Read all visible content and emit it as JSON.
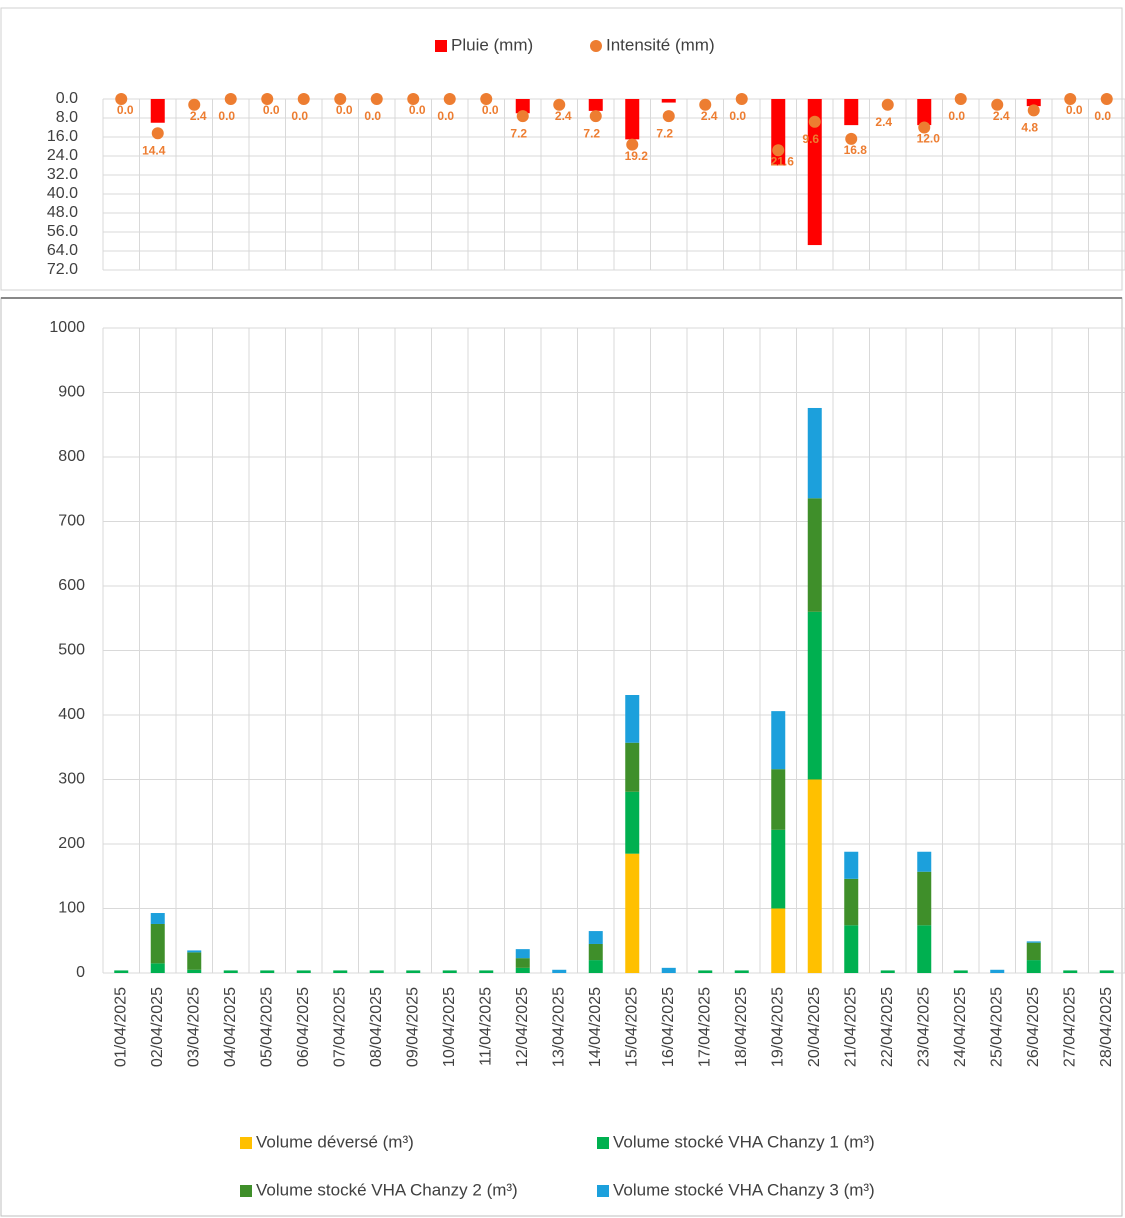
{
  "chart_data": [
    {
      "type": "bar",
      "y_inverted": true,
      "grid": true,
      "ylim": [
        0,
        72
      ],
      "yticks": [
        {
          "value": 0,
          "label": "0.0"
        },
        {
          "value": 8,
          "label": "8.0"
        },
        {
          "value": 16,
          "label": "16.0"
        },
        {
          "value": 24,
          "label": "24.0"
        },
        {
          "value": 32,
          "label": "32.0"
        },
        {
          "value": 40,
          "label": "40.0"
        },
        {
          "value": 48,
          "label": "48.0"
        },
        {
          "value": 56,
          "label": "56.0"
        },
        {
          "value": 64,
          "label": "64.0"
        },
        {
          "value": 72,
          "label": "72.0"
        }
      ],
      "series": [
        {
          "name": "Pluie (mm)",
          "color": "#ff0000",
          "values": [
            0,
            10,
            0,
            0,
            0,
            0,
            0,
            0,
            0,
            0,
            0,
            6,
            0,
            5,
            17,
            1.5,
            0,
            0,
            28,
            61.5,
            11,
            0,
            11,
            0,
            0,
            3,
            0,
            0
          ]
        },
        {
          "name": "Intensité (mm)",
          "color": "#ed7d31",
          "type": "scatter",
          "values": [
            0,
            14.4,
            2.4,
            0,
            0,
            0,
            0,
            0,
            0,
            0,
            0,
            7.2,
            2.4,
            7.2,
            19.2,
            7.2,
            2.4,
            0,
            21.6,
            9.6,
            16.8,
            2.4,
            12,
            0,
            2.4,
            4.8,
            0,
            0
          ],
          "value_labels": [
            "0.0",
            "14.4",
            "2.4",
            "0.0",
            "0.0",
            "0.0",
            "0.0",
            "0.0",
            "0.0",
            "0.0",
            "0.0",
            "7.2",
            "2.4",
            "7.2",
            "19.2",
            "7.2",
            "2.4",
            "0.0",
            "21.6",
            "9.6",
            "16.8",
            "2.4",
            "12.0",
            "0.0",
            "2.4",
            "4.8",
            "0.0",
            "0.0"
          ]
        }
      ]
    },
    {
      "type": "bar",
      "stacked": true,
      "grid": true,
      "categories": [
        "01/04/2025",
        "02/04/2025",
        "03/04/2025",
        "04/04/2025",
        "05/04/2025",
        "06/04/2025",
        "07/04/2025",
        "08/04/2025",
        "09/04/2025",
        "10/04/2025",
        "11/04/2025",
        "12/04/2025",
        "13/04/2025",
        "14/04/2025",
        "15/04/2025",
        "16/04/2025",
        "17/04/2025",
        "18/04/2025",
        "19/04/2025",
        "20/04/2025",
        "21/04/2025",
        "22/04/2025",
        "23/04/2025",
        "24/04/2025",
        "25/04/2025",
        "26/04/2025",
        "27/04/2025",
        "28/04/2025"
      ],
      "ylim": [
        0,
        1000
      ],
      "yticks": [
        0,
        100,
        200,
        300,
        400,
        500,
        600,
        700,
        800,
        900,
        1000
      ],
      "series": [
        {
          "name": "Volume déversé (m³)",
          "color": "#ffc000",
          "values": [
            0,
            0,
            0,
            0,
            0,
            0,
            0,
            0,
            0,
            0,
            0,
            0,
            0,
            0,
            185,
            0,
            0,
            0,
            100,
            300,
            0,
            0,
            0,
            0,
            0,
            0,
            0,
            0
          ]
        },
        {
          "name": "Volume stocké VHA Chanzy 1 (m³)",
          "color": "#00b050",
          "values": [
            4,
            15,
            5,
            4,
            4,
            4,
            4,
            4,
            4,
            4,
            4,
            8,
            0,
            20,
            96,
            0,
            4,
            4,
            122,
            260,
            74,
            4,
            74,
            4,
            0,
            20,
            4,
            4
          ]
        },
        {
          "name": "Volume stocké VHA Chanzy 2 (m³)",
          "color": "#3f8f2a",
          "values": [
            0,
            61,
            27,
            0,
            0,
            0,
            0,
            0,
            0,
            0,
            0,
            15,
            0,
            25,
            76,
            0,
            0,
            0,
            94,
            176,
            72,
            0,
            83,
            0,
            0,
            27,
            0,
            0
          ]
        },
        {
          "name": "Volume stocké VHA Chanzy 3 (m³)",
          "color": "#1ca0dc",
          "values": [
            0,
            17,
            3,
            0,
            0,
            0,
            0,
            0,
            0,
            0,
            0,
            14,
            5,
            20,
            74,
            8,
            0,
            0,
            90,
            140,
            42,
            0,
            31,
            0,
            5,
            2,
            0,
            0
          ]
        }
      ]
    }
  ]
}
